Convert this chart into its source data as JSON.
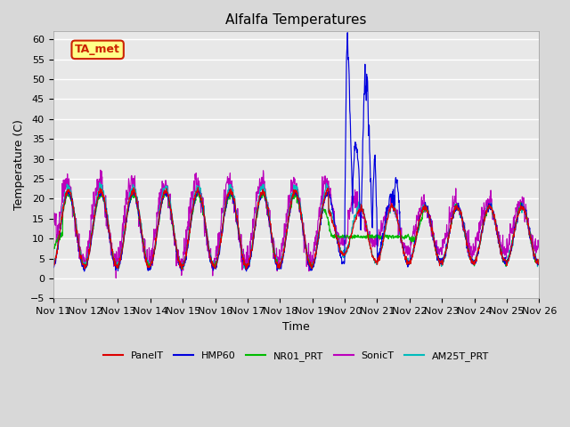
{
  "title": "Alfalfa Temperatures",
  "xlabel": "Time",
  "ylabel": "Temperature (C)",
  "ylim": [
    -5,
    62
  ],
  "xlim": [
    0,
    15
  ],
  "fig_bg": "#d8d8d8",
  "plot_bg": "#e8e8e8",
  "annotation": {
    "text": "TA_met",
    "facecolor": "#ffff88",
    "edgecolor": "#cc2200",
    "textcolor": "#cc2200"
  },
  "yticks": [
    -5,
    0,
    5,
    10,
    15,
    20,
    25,
    30,
    35,
    40,
    45,
    50,
    55,
    60
  ],
  "xtick_labels": [
    "Nov 11",
    "Nov 12",
    "Nov 13",
    "Nov 14",
    "Nov 15",
    "Nov 16",
    "Nov 17",
    "Nov 18",
    "Nov 19",
    "Nov 20",
    "Nov 21",
    "Nov 22",
    "Nov 23",
    "Nov 24",
    "Nov 25",
    "Nov 26"
  ],
  "legend_colors": [
    "#dd0000",
    "#0000dd",
    "#00bb00",
    "#bb00bb",
    "#00bbbb"
  ],
  "legend_labels": [
    "PanelT",
    "HMP60",
    "NR01_PRT",
    "SonicT",
    "AM25T_PRT"
  ]
}
